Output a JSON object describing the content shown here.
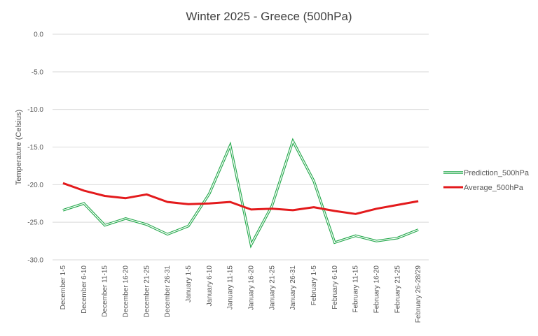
{
  "chart_data": {
    "type": "line",
    "title": "Winter 2025 - Greece (500hPa)",
    "xlabel": "",
    "ylabel": "Temperature (Celsius)",
    "ylim": [
      -30,
      0
    ],
    "yticks": [
      "0.0",
      "-5.0",
      "-10.0",
      "-15.0",
      "-20.0",
      "-25.0",
      "-30.0"
    ],
    "ytick_values": [
      0,
      -5,
      -10,
      -15,
      -20,
      -25,
      -30
    ],
    "grid": true,
    "legend_position": "right",
    "categories": [
      "December 1-5",
      "December 6-10",
      "December 11-15",
      "December 16-20",
      "December 21-25",
      "December 26-31",
      "January 1-5",
      "January 6-10",
      "January 11-15",
      "January 16-20",
      "January 21-25",
      "January 26-31",
      "February 1-5",
      "February 6-10",
      "February 11-15",
      "February 16-20",
      "February 21-25",
      "February 26-28/29"
    ],
    "series": [
      {
        "name": "Prediction_500hPa",
        "color": "#22a84a",
        "style": "double-line",
        "values": [
          -23.4,
          -22.5,
          -25.4,
          -24.5,
          -25.3,
          -26.6,
          -25.5,
          -21.2,
          -14.8,
          -28.0,
          -22.8,
          -14.2,
          -19.5,
          -27.7,
          -26.8,
          -27.5,
          -27.1,
          -26.0
        ]
      },
      {
        "name": "Average_500hPa",
        "color": "#e31a1c",
        "style": "solid",
        "values": [
          -19.8,
          -20.8,
          -21.5,
          -21.8,
          -21.3,
          -22.3,
          -22.6,
          -22.5,
          -22.3,
          -23.3,
          -23.2,
          -23.4,
          -23.0,
          -23.5,
          -23.9,
          -23.2,
          -22.7,
          -22.2
        ]
      }
    ]
  }
}
